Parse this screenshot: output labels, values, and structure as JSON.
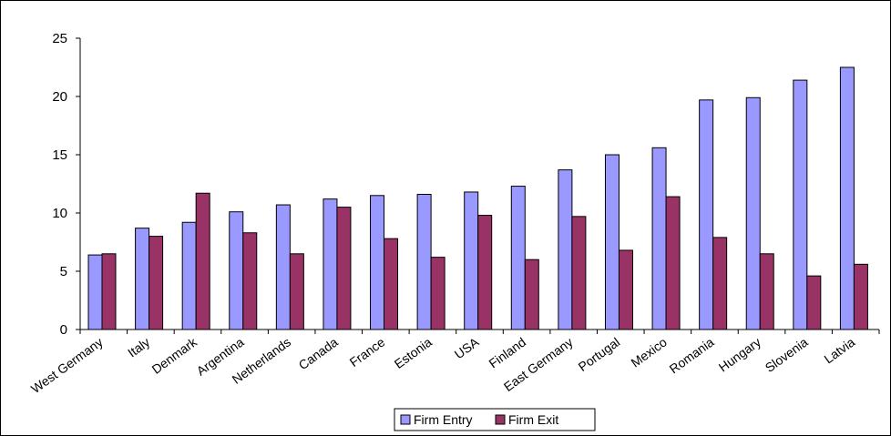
{
  "chart_data": {
    "type": "bar",
    "title": "",
    "xlabel": "",
    "ylabel": "",
    "ylim": [
      0,
      25
    ],
    "yticks": [
      0,
      5,
      10,
      15,
      20,
      25
    ],
    "grid": false,
    "legend_position": "bottom",
    "categories": [
      "West Germany",
      "Italy",
      "Denmark",
      "Argentina",
      "Netherlands",
      "Canada",
      "France",
      "Estonia",
      "USA",
      "Finland",
      "East Germany",
      "Portugal",
      "Mexico",
      "Romania",
      "Hungary",
      "Slovenia",
      "Latvia"
    ],
    "series": [
      {
        "name": "Firm Entry",
        "color": "#9999ff",
        "values": [
          6.4,
          8.7,
          9.2,
          10.1,
          10.7,
          11.2,
          11.5,
          11.6,
          11.8,
          12.3,
          13.7,
          15.0,
          15.6,
          19.7,
          19.9,
          21.4,
          22.5
        ]
      },
      {
        "name": "Firm Exit",
        "color": "#993366",
        "values": [
          6.5,
          8.0,
          11.7,
          8.3,
          6.5,
          10.5,
          7.8,
          6.2,
          9.8,
          6.0,
          9.7,
          6.8,
          11.4,
          7.9,
          6.5,
          4.6,
          5.6
        ]
      }
    ]
  }
}
